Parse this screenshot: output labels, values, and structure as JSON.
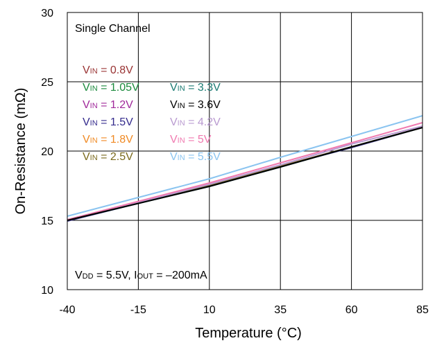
{
  "chart_data": {
    "type": "line",
    "title": "",
    "xlabel": "Temperature (°C)",
    "ylabel": "On-Resistance (mΩ)",
    "xlim": [
      -40,
      85
    ],
    "ylim": [
      10,
      30
    ],
    "xticks": [
      -40,
      -15,
      10,
      35,
      60,
      85
    ],
    "yticks": [
      10,
      15,
      20,
      25,
      30
    ],
    "grid": true,
    "top_annotation": "Single Channel",
    "bottom_annotation": {
      "parts": [
        {
          "text": "V",
          "sub": false
        },
        {
          "text": "DD",
          "sub": true
        },
        {
          "text": " = 5.5V, I",
          "sub": false
        },
        {
          "text": "OUT",
          "sub": true
        },
        {
          "text": " = –200mA",
          "sub": false
        }
      ]
    },
    "legend_columns": [
      [
        {
          "prefix": "V",
          "sub": "IN",
          "rest": " = 0.8V",
          "color": "#993333"
        },
        {
          "prefix": "V",
          "sub": "IN",
          "rest": " = 1.05V",
          "color": "#1a8a3c"
        },
        {
          "prefix": "V",
          "sub": "IN",
          "rest": " = 1.2V",
          "color": "#a0289a"
        },
        {
          "prefix": "V",
          "sub": "IN",
          "rest": " = 1.5V",
          "color": "#332a8c"
        },
        {
          "prefix": "V",
          "sub": "IN",
          "rest": " = 1.8V",
          "color": "#f08a24"
        },
        {
          "prefix": "V",
          "sub": "IN",
          "rest": " = 2.5V",
          "color": "#7a6a1c"
        }
      ],
      [
        {
          "prefix": "V",
          "sub": "IN",
          "rest": " = 3.3V",
          "color": "#1a7a72"
        },
        {
          "prefix": "V",
          "sub": "IN",
          "rest": " = 3.6V",
          "color": "#000000"
        },
        {
          "prefix": "V",
          "sub": "IN",
          "rest": " = 4.2V",
          "color": "#b99ad0"
        },
        {
          "prefix": "V",
          "sub": "IN",
          "rest": " = 5V",
          "color": "#f07ab0"
        },
        {
          "prefix": "V",
          "sub": "IN",
          "rest": " = 5.5V",
          "color": "#8ac4f0"
        }
      ]
    ],
    "series": [
      {
        "name": "VIN = 0.8V",
        "color": "#993333",
        "x": [
          -40,
          10,
          35,
          60,
          85
        ],
        "y": [
          15.0,
          17.5,
          18.9,
          20.3,
          21.7
        ]
      },
      {
        "name": "VIN = 1.05V",
        "color": "#1a8a3c",
        "x": [
          -40,
          10,
          35,
          60,
          85
        ],
        "y": [
          15.0,
          17.5,
          18.9,
          20.3,
          21.7
        ]
      },
      {
        "name": "VIN = 1.2V",
        "color": "#a0289a",
        "x": [
          -40,
          10,
          35,
          60,
          85
        ],
        "y": [
          15.0,
          17.5,
          18.9,
          20.3,
          21.7
        ]
      },
      {
        "name": "VIN = 1.5V",
        "color": "#332a8c",
        "x": [
          -40,
          10,
          35,
          60,
          85
        ],
        "y": [
          14.95,
          17.5,
          18.9,
          20.25,
          21.7
        ]
      },
      {
        "name": "VIN = 1.8V",
        "color": "#f08a24",
        "x": [
          -40,
          10,
          35,
          60,
          85
        ],
        "y": [
          15.0,
          17.5,
          18.9,
          20.3,
          21.7
        ]
      },
      {
        "name": "VIN = 2.5V",
        "color": "#7a6a1c",
        "x": [
          -40,
          10,
          35,
          60,
          85
        ],
        "y": [
          15.0,
          17.5,
          18.9,
          20.3,
          21.7
        ]
      },
      {
        "name": "VIN = 3.3V",
        "color": "#1a7a72",
        "x": [
          -40,
          10,
          35,
          60,
          85
        ],
        "y": [
          15.0,
          17.45,
          18.85,
          20.3,
          21.7
        ]
      },
      {
        "name": "VIN = 3.6V",
        "color": "#000000",
        "x": [
          -40,
          10,
          35,
          60,
          85
        ],
        "y": [
          15.0,
          17.45,
          18.85,
          20.3,
          21.7
        ]
      },
      {
        "name": "VIN = 4.2V",
        "color": "#b99ad0",
        "x": [
          -40,
          10,
          35,
          60,
          85
        ],
        "y": [
          15.0,
          17.6,
          19.0,
          20.5,
          21.8
        ]
      },
      {
        "name": "VIN = 5V",
        "color": "#f07ab0",
        "x": [
          -40,
          10,
          35,
          60,
          85
        ],
        "y": [
          15.05,
          17.7,
          19.15,
          20.6,
          22.05
        ]
      },
      {
        "name": "VIN = 5.5V",
        "color": "#8ac4f0",
        "x": [
          -40,
          10,
          35,
          60,
          85
        ],
        "y": [
          15.3,
          18.0,
          19.55,
          21.05,
          22.55
        ]
      }
    ]
  }
}
